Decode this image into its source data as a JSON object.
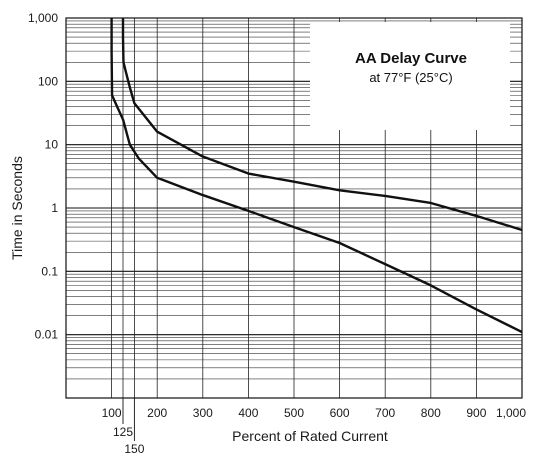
{
  "chart_data": {
    "type": "line",
    "title": "AA Delay Curve",
    "subtitle": "at 77°F (25°C)",
    "xlabel": "Percent of Rated Current",
    "ylabel": "Time in Seconds",
    "xlim": [
      0,
      1000
    ],
    "ylim": [
      0.001,
      1000
    ],
    "y_scale": "log",
    "grid": true,
    "x_tick_labels": [
      "100",
      "125",
      "150",
      "200",
      "300",
      "400",
      "500",
      "600",
      "700",
      "800",
      "900",
      "1,000"
    ],
    "x_tick_values": [
      100,
      125,
      150,
      200,
      300,
      400,
      500,
      600,
      700,
      800,
      900,
      1000
    ],
    "y_tick_labels": [
      "1,000",
      "100",
      "10",
      "1",
      "0.1",
      "0.01"
    ],
    "y_tick_values": [
      1000,
      100,
      10,
      1,
      0.1,
      0.01
    ],
    "series": [
      {
        "values": [
          [
            100,
            1000
          ],
          [
            100,
            300
          ],
          [
            101,
            60
          ],
          [
            112,
            40
          ],
          [
            125,
            25
          ],
          [
            140,
            10
          ],
          [
            160,
            6
          ],
          [
            200,
            3
          ],
          [
            300,
            1.6
          ],
          [
            400,
            0.9
          ],
          [
            500,
            0.5
          ],
          [
            600,
            0.28
          ],
          [
            700,
            0.13
          ],
          [
            800,
            0.06
          ],
          [
            900,
            0.025
          ],
          [
            1000,
            0.011
          ]
        ]
      },
      {
        "values": [
          [
            125,
            1000
          ],
          [
            125,
            500
          ],
          [
            126,
            200
          ],
          [
            140,
            80
          ],
          [
            150,
            45
          ],
          [
            200,
            16
          ],
          [
            300,
            6.5
          ],
          [
            400,
            3.5
          ],
          [
            500,
            2.6
          ],
          [
            600,
            1.9
          ],
          [
            700,
            1.55
          ],
          [
            800,
            1.2
          ],
          [
            900,
            0.75
          ],
          [
            1000,
            0.45
          ]
        ]
      }
    ]
  }
}
